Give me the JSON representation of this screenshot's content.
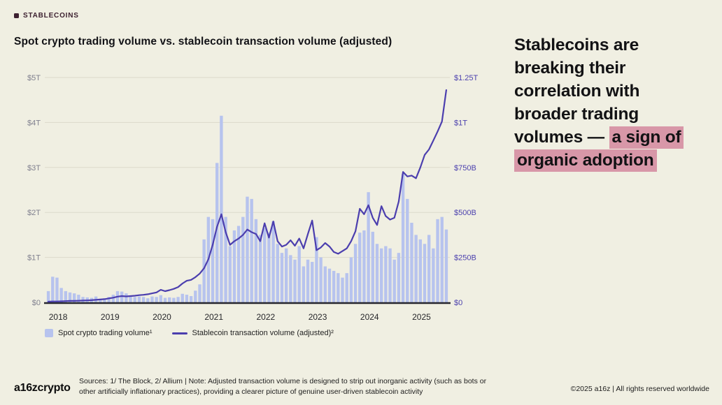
{
  "badge": {
    "label": "STABLECOINS"
  },
  "title": "Spot crypto trading volume vs. stablecoin transaction volume (adjusted)",
  "headline": {
    "plain": "Stablecoins are breaking their correlation with broader trading volumes — ",
    "highlighted": "a sign of organic adoption",
    "highlight_color": "#d897a8"
  },
  "legend": {
    "bar_label": "Spot crypto trading volume¹",
    "line_label": "Stablecoin transaction volume (adjusted)²"
  },
  "footer": {
    "logo": "a16zcrypto",
    "sources": "Sources: 1/ The Block, 2/ Allium   |   Note: Adjusted transaction volume is designed to strip out inorganic activity (such as bots or other artificially inflationary practices), providing a clearer picture of genuine user-driven stablecoin activity",
    "copyright": "©2025 a16z | All rights reserved worldwide"
  },
  "colors": {
    "background": "#f0efe2",
    "bar": "#b7c3ee",
    "line": "#4b3eae",
    "grid": "#dcdacb",
    "axis": "#26262e",
    "left_axis_label": "#80808f",
    "right_axis_label": "#4c41ae",
    "badge": "#3d2130",
    "highlight": "#d897a8"
  },
  "chart_data": {
    "type": "bar",
    "subtype": "bar+line combo, dual axis",
    "title": "Spot crypto trading volume vs. stablecoin transaction volume (adjusted)",
    "x_ticks": [
      "2018",
      "2019",
      "2020",
      "2021",
      "2022",
      "2023",
      "2024",
      "2025"
    ],
    "left_axis": {
      "label": "Spot crypto trading volume",
      "ticks": [
        "$0",
        "$1T",
        "$2T",
        "$3T",
        "$4T",
        "$5T"
      ],
      "range_trillions": [
        0,
        5
      ]
    },
    "right_axis": {
      "label": "Stablecoin transaction volume (adjusted)",
      "ticks": [
        "$0",
        "$250B",
        "$500B",
        "$750B",
        "$1T",
        "$1.25T"
      ],
      "range_billions": [
        0,
        1250
      ]
    },
    "grid": true,
    "legend_position": "bottom-left",
    "x": [
      "2018-01",
      "2018-02",
      "2018-03",
      "2018-04",
      "2018-05",
      "2018-06",
      "2018-07",
      "2018-08",
      "2018-09",
      "2018-10",
      "2018-11",
      "2018-12",
      "2019-01",
      "2019-02",
      "2019-03",
      "2019-04",
      "2019-05",
      "2019-06",
      "2019-07",
      "2019-08",
      "2019-09",
      "2019-10",
      "2019-11",
      "2019-12",
      "2020-01",
      "2020-02",
      "2020-03",
      "2020-04",
      "2020-05",
      "2020-06",
      "2020-07",
      "2020-08",
      "2020-09",
      "2020-10",
      "2020-11",
      "2020-12",
      "2021-01",
      "2021-02",
      "2021-03",
      "2021-04",
      "2021-05",
      "2021-06",
      "2021-07",
      "2021-08",
      "2021-09",
      "2021-10",
      "2021-11",
      "2021-12",
      "2022-01",
      "2022-02",
      "2022-03",
      "2022-04",
      "2022-05",
      "2022-06",
      "2022-07",
      "2022-08",
      "2022-09",
      "2022-10",
      "2022-11",
      "2022-12",
      "2023-01",
      "2023-02",
      "2023-03",
      "2023-04",
      "2023-05",
      "2023-06",
      "2023-07",
      "2023-08",
      "2023-09",
      "2023-10",
      "2023-11",
      "2023-12",
      "2024-01",
      "2024-02",
      "2024-03",
      "2024-04",
      "2024-05",
      "2024-06",
      "2024-07",
      "2024-08",
      "2024-09",
      "2024-10",
      "2024-11",
      "2024-12",
      "2025-01",
      "2025-02",
      "2025-03",
      "2025-04",
      "2025-05",
      "2025-06",
      "2025-07",
      "2025-08",
      "2025-09"
    ],
    "series": [
      {
        "name": "Spot crypto trading volume",
        "type": "bar",
        "axis": "left",
        "unit": "trillion USD",
        "values": [
          0.25,
          0.57,
          0.55,
          0.32,
          0.25,
          0.22,
          0.2,
          0.17,
          0.12,
          0.11,
          0.1,
          0.13,
          0.08,
          0.09,
          0.12,
          0.17,
          0.25,
          0.24,
          0.2,
          0.15,
          0.12,
          0.13,
          0.12,
          0.09,
          0.13,
          0.12,
          0.16,
          0.1,
          0.11,
          0.1,
          0.12,
          0.19,
          0.17,
          0.14,
          0.26,
          0.4,
          1.4,
          1.9,
          1.85,
          3.1,
          4.15,
          1.9,
          1.25,
          1.6,
          1.7,
          1.9,
          2.35,
          2.3,
          1.85,
          1.5,
          1.65,
          1.55,
          1.8,
          1.3,
          1.1,
          1.2,
          1.05,
          0.95,
          1.25,
          0.8,
          0.95,
          0.9,
          1.45,
          1.0,
          0.8,
          0.75,
          0.7,
          0.65,
          0.55,
          0.65,
          1.0,
          1.3,
          1.55,
          1.6,
          2.45,
          1.57,
          1.3,
          1.2,
          1.25,
          1.2,
          0.95,
          1.1,
          2.85,
          2.3,
          1.77,
          1.5,
          1.4,
          1.3,
          1.5,
          1.2,
          1.85,
          1.9,
          1.62
        ]
      },
      {
        "name": "Stablecoin transaction volume (adjusted)",
        "type": "line",
        "axis": "right",
        "unit": "billion USD",
        "values": [
          4,
          5,
          5,
          6,
          7,
          8,
          8,
          9,
          10,
          11,
          12,
          14,
          16,
          18,
          22,
          26,
          32,
          35,
          33,
          35,
          37,
          40,
          42,
          45,
          50,
          55,
          70,
          62,
          68,
          75,
          85,
          105,
          120,
          125,
          140,
          160,
          190,
          240,
          320,
          420,
          490,
          390,
          320,
          340,
          355,
          375,
          405,
          390,
          380,
          340,
          440,
          360,
          450,
          340,
          310,
          320,
          345,
          315,
          355,
          300,
          380,
          455,
          290,
          305,
          330,
          310,
          280,
          270,
          285,
          300,
          340,
          395,
          520,
          490,
          540,
          470,
          430,
          535,
          480,
          460,
          470,
          560,
          725,
          700,
          705,
          690,
          750,
          820,
          850,
          900,
          950,
          1005,
          1180
        ]
      }
    ]
  }
}
